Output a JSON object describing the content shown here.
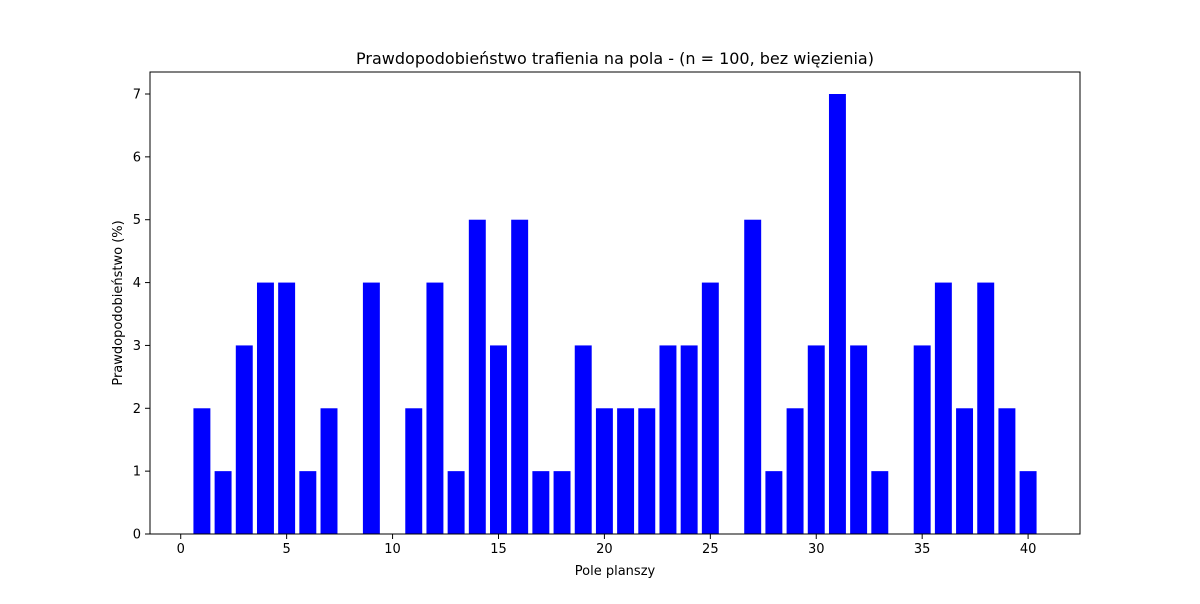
{
  "chart_data": {
    "type": "bar",
    "title": "Prawdopodobieństwo trafienia na pola - (n = 100, bez więzienia)",
    "xlabel": "Pole planszy",
    "ylabel": "Prawdopodobieństwo (%)",
    "x": [
      1,
      2,
      3,
      4,
      5,
      6,
      7,
      8,
      9,
      10,
      11,
      12,
      13,
      14,
      15,
      16,
      17,
      18,
      19,
      20,
      21,
      22,
      23,
      24,
      25,
      26,
      27,
      28,
      29,
      30,
      31,
      32,
      33,
      34,
      35,
      36,
      37,
      38,
      39,
      40
    ],
    "values": [
      2,
      1,
      3,
      4,
      4,
      1,
      2,
      0,
      4,
      0,
      2,
      4,
      1,
      5,
      3,
      5,
      1,
      1,
      3,
      2,
      2,
      2,
      3,
      3,
      4,
      0,
      5,
      1,
      2,
      3,
      7,
      3,
      1,
      0,
      3,
      4,
      2,
      4,
      2,
      1
    ],
    "xlim": [
      -1.45,
      42.45
    ],
    "ylim": [
      0,
      7.35
    ],
    "xticks": [
      0,
      5,
      10,
      15,
      20,
      25,
      30,
      35,
      40
    ],
    "yticks": [
      0,
      1,
      2,
      3,
      4,
      5,
      6,
      7
    ],
    "bar_color": "#0000ff",
    "grid": false,
    "legend": "none"
  }
}
